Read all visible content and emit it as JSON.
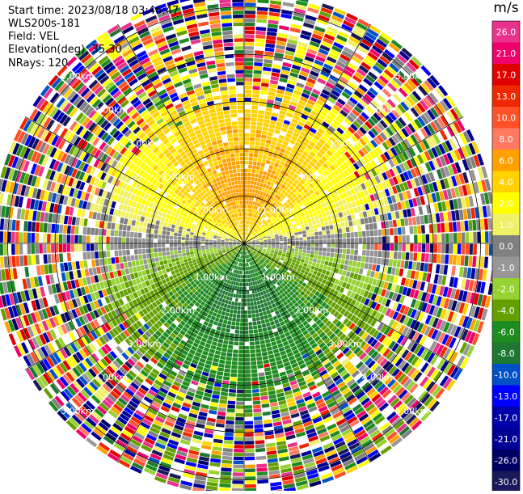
{
  "header": {
    "start_time": "Start time: 2023/08/18 03:46:47",
    "instrument": "WLS200s-181",
    "field": "Field: VEL",
    "elevation": "Elevation(deg): 35.30",
    "nrays": "NRays: 120"
  },
  "chart_data": {
    "type": "heatmap",
    "projection": "polar PPI",
    "unit": "m/s",
    "range_rings_km": [
      1.0,
      2.0,
      3.0,
      4.0,
      5.0
    ],
    "ring_labels": [
      "1.00km",
      "2.00km",
      "3.00km",
      "4.00km",
      "5.00km"
    ],
    "radial_lines_deg": [
      0,
      30,
      60,
      90,
      120,
      150
    ],
    "nrays": 120,
    "max_range_km": 5.35,
    "colorbar": {
      "ticks": [
        "26.0",
        "21.0",
        "17.0",
        "13.0",
        "10.0",
        "8.0",
        "6.0",
        "4.0",
        "2.0",
        "1.0",
        "0.0",
        "-1.0",
        "-2.0",
        "-4.0",
        "-6.0",
        "-8.0",
        "-10.0",
        "-13.0",
        "-17.0",
        "-21.0",
        "-26.0",
        "-30.0"
      ],
      "colors": [
        "#e8328c",
        "#f0006c",
        "#e00000",
        "#f02800",
        "#ff5028",
        "#ff7860",
        "#ffa000",
        "#ffd200",
        "#ffff00",
        "#f0f064",
        "#808080",
        "#969696",
        "#96d232",
        "#64a000",
        "#1e8c1e",
        "#1e7832",
        "#0050c8",
        "#0000ff",
        "#0000aa",
        "#000096",
        "#000064",
        "#18185a"
      ]
    },
    "pattern_note": "positive velocities in northern half, negative in southern half, noisy far range"
  },
  "colors": {
    "ring": "#000000",
    "background": "#ffffff"
  }
}
